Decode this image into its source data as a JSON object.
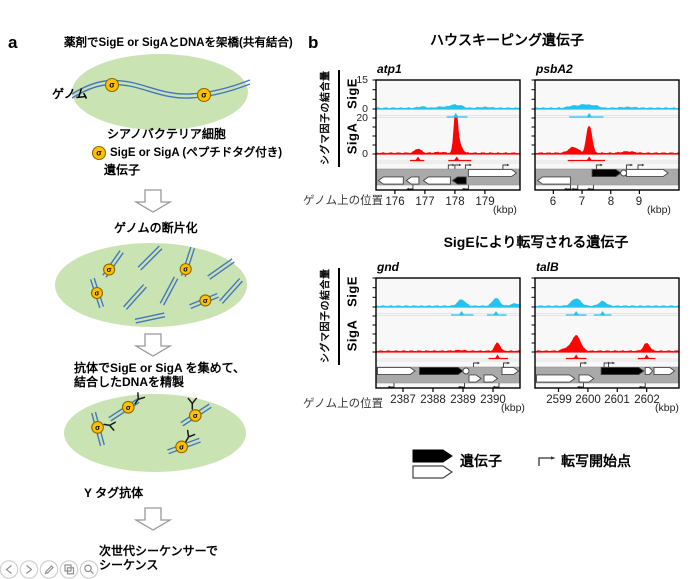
{
  "panel_a": {
    "label": "a",
    "sigma_symbol": "σ",
    "step1_title": "薬剤でSigE or SigAとDNAを架橋(共有結合)",
    "genome_label": "ゲノム",
    "cell_label": "シアノバクテリア細胞",
    "sigma_legend_line1": "SigE or SigA (ペプチドタグ付き)",
    "sigma_legend_line2": "遺伝子",
    "step2_title": "ゲノムの断片化",
    "step3_title_line1": "抗体でSigE or SigA を集めて、",
    "step3_title_line2": "結合したDNAを精製",
    "antibody_label": "Y タグ抗体",
    "step4_title_line1": "次世代シーケンサーで",
    "step4_title_line2": "シーケンス"
  },
  "panel_b": {
    "label": "b",
    "section1_title": "ハウスキーピング遺伝子",
    "section2_title": "SigEにより転写される遺伝子",
    "y_axis_label": "シグマ因子の結合量",
    "sigE_label": "SigE",
    "sigA_label": "SigA",
    "x_axis_label": "ゲノム上の位置",
    "kbp_label": "(kbp)",
    "legend": {
      "gene_label": "遺伝子",
      "tss_label": "転写開始点"
    }
  },
  "viewer_toolbar": {
    "buttons": [
      "previous-icon",
      "next-icon",
      "edit-pencil-icon",
      "copy-icon",
      "zoom-icon"
    ]
  },
  "colors": {
    "sigE": "#23c3f1",
    "sigA": "#fb0404",
    "cell": "#c9e3b2",
    "dna": "#4677be",
    "sigma_fill": "#ffc000",
    "gene_bar": "#a9a9a9"
  },
  "chart_data": {
    "type": "area",
    "description": "ChIP-seq genome-browser tracks: SigE (cyan) and SigA (red) binding signal over four genomic loci, with gene models (gray bar: white/black arrows) and transcription start sites.",
    "y_units": {
      "sigE_max": 15,
      "sigA_max": 20
    },
    "plots": [
      {
        "gene": "atp1",
        "x_domain": [
          175.37,
          180.17
        ],
        "x_ticks": [
          "176",
          "177",
          "178",
          "179"
        ],
        "show_y_numbers": true,
        "sigE": {
          "ymax": 15,
          "axis_labels": [
            "15",
            "0"
          ],
          "peaks": [
            {
              "x": 176.9,
              "h": 0.7,
              "w": 0.12
            },
            {
              "x": 177.55,
              "h": 0.6,
              "w": 0.15
            },
            {
              "x": 177.95,
              "h": 1.6,
              "w": 0.13
            },
            {
              "x": 178.2,
              "h": 1.0,
              "w": 0.1
            },
            {
              "x": 179.0,
              "h": 0.4,
              "w": 0.2
            }
          ],
          "markers": [
            {
              "x0": 177.72,
              "x1": 178.42,
              "sx": 178.03
            }
          ]
        },
        "sigA": {
          "ymax": 20,
          "axis_labels": [
            "20",
            "0"
          ],
          "peaks": [
            {
              "x": 176.77,
              "h": 2.3,
              "w": 0.1
            },
            {
              "x": 178.03,
              "h": 20,
              "w": 0.055
            },
            {
              "x": 178.13,
              "h": 5,
              "w": 0.1
            },
            {
              "x": 177.5,
              "h": 0.4,
              "w": 0.15
            }
          ],
          "markers": [
            {
              "x0": 176.5,
              "x1": 176.98,
              "sx": 176.77
            },
            {
              "x0": 177.78,
              "x1": 178.55,
              "sx": 178.06
            }
          ]
        },
        "genes": [
          {
            "row": 1,
            "start": 175.45,
            "end": 176.28,
            "dir": "left",
            "fill": "white"
          },
          {
            "row": 1,
            "start": 176.38,
            "end": 176.8,
            "dir": "left",
            "fill": "white"
          },
          {
            "row": 1,
            "start": 176.95,
            "end": 177.85,
            "dir": "left",
            "fill": "white"
          },
          {
            "row": 1,
            "start": 177.92,
            "end": 178.38,
            "dir": "left",
            "fill": "black"
          },
          {
            "row": 0,
            "start": 178.45,
            "end": 180.05,
            "dir": "right",
            "fill": "white"
          }
        ],
        "tss": [
          {
            "x": 177.78,
            "dir": "right",
            "pos": "above"
          },
          {
            "x": 178.0,
            "dir": "right",
            "pos": "above"
          },
          {
            "x": 178.35,
            "dir": "right",
            "pos": "above"
          },
          {
            "x": 179.6,
            "dir": "right",
            "pos": "above"
          },
          {
            "x": 178.45,
            "dir": "left",
            "pos": "below"
          },
          {
            "x": 176.6,
            "dir": "left",
            "pos": "below"
          }
        ]
      },
      {
        "gene": "psbA2",
        "x_domain": [
          5.36,
          10.38
        ],
        "x_ticks": [
          "6",
          "7",
          "8",
          "9"
        ],
        "show_y_numbers": false,
        "sigE": {
          "ymax": 15,
          "peaks": [
            {
              "x": 6.7,
              "h": 1.1,
              "w": 0.18
            },
            {
              "x": 7.1,
              "h": 1.7,
              "w": 0.16
            },
            {
              "x": 7.45,
              "h": 1.2,
              "w": 0.14
            },
            {
              "x": 8.6,
              "h": 0.4,
              "w": 0.25
            }
          ],
          "markers": [
            {
              "x0": 6.55,
              "x1": 7.75,
              "sx": 7.25
            }
          ]
        },
        "sigA": {
          "ymax": 20,
          "peaks": [
            {
              "x": 6.7,
              "h": 3.2,
              "w": 0.16
            },
            {
              "x": 7.25,
              "h": 15,
              "w": 0.085
            },
            {
              "x": 8.6,
              "h": 0.8,
              "w": 0.2
            }
          ],
          "markers": [
            {
              "x0": 6.5,
              "x1": 7.8,
              "sx": 7.25
            }
          ]
        },
        "genes": [
          {
            "row": 1,
            "start": 5.45,
            "end": 6.6,
            "dir": "left",
            "fill": "white"
          },
          {
            "row": 0,
            "start": 7.35,
            "end": 8.35,
            "dir": "right",
            "fill": "black"
          },
          {
            "shape": "circle",
            "x": 8.45,
            "row": 0
          },
          {
            "row": 0,
            "start": 8.55,
            "end": 10.0,
            "dir": "right",
            "fill": "white"
          }
        ],
        "tss": [
          {
            "x": 7.5,
            "dir": "right",
            "pos": "above"
          },
          {
            "x": 8.55,
            "dir": "right",
            "pos": "above"
          },
          {
            "x": 8.95,
            "dir": "right",
            "pos": "above"
          },
          {
            "x": 6.6,
            "dir": "left",
            "pos": "below"
          },
          {
            "x": 6.85,
            "dir": "left",
            "pos": "below"
          },
          {
            "x": 7.4,
            "dir": "left",
            "pos": "below"
          }
        ]
      },
      {
        "gene": "gnd",
        "x_domain": [
          2386.1,
          2390.9
        ],
        "x_ticks": [
          "2387",
          "2388",
          "2389",
          "2390"
        ],
        "show_y_numbers": false,
        "sigE": {
          "ymax": 15,
          "peaks": [
            {
              "x": 2388.95,
              "h": 3.3,
              "w": 0.12
            },
            {
              "x": 2390.1,
              "h": 4.0,
              "w": 0.11
            },
            {
              "x": 2390.75,
              "h": 1.2,
              "w": 0.15
            }
          ],
          "markers": [
            {
              "x0": 2388.6,
              "x1": 2389.35,
              "sx": 2388.95
            },
            {
              "x0": 2389.8,
              "x1": 2390.45,
              "sx": 2390.1
            }
          ]
        },
        "sigA": {
          "ymax": 20,
          "peaks": [
            {
              "x": 2390.15,
              "h": 4.5,
              "w": 0.08
            },
            {
              "x": 2388.9,
              "h": 0.4,
              "w": 0.15
            }
          ],
          "markers": [
            {
              "x0": 2389.85,
              "x1": 2390.5,
              "sx": 2390.15
            }
          ]
        },
        "genes": [
          {
            "row": 0,
            "start": 2386.15,
            "end": 2387.4,
            "dir": "right",
            "fill": "white"
          },
          {
            "row": 0,
            "start": 2387.55,
            "end": 2389.0,
            "dir": "right",
            "fill": "black"
          },
          {
            "shape": "circle",
            "x": 2389.1,
            "row": 0
          },
          {
            "row": 1,
            "start": 2389.2,
            "end": 2389.6,
            "dir": "right",
            "fill": "white"
          },
          {
            "row": 1,
            "start": 2389.7,
            "end": 2390.15,
            "dir": "right",
            "fill": "white"
          },
          {
            "row": 0,
            "start": 2390.3,
            "end": 2390.85,
            "dir": "right",
            "fill": "white"
          }
        ],
        "tss": [
          {
            "x": 2389.35,
            "dir": "right",
            "pos": "above"
          },
          {
            "x": 2390.35,
            "dir": "right",
            "pos": "above"
          },
          {
            "x": 2386.7,
            "dir": "left",
            "pos": "below"
          },
          {
            "x": 2389.05,
            "dir": "left",
            "pos": "below"
          },
          {
            "x": 2390.2,
            "dir": "left",
            "pos": "below"
          }
        ]
      },
      {
        "gene": "talB",
        "x_domain": [
          2598.2,
          2603.1
        ],
        "x_ticks": [
          "2599",
          "2600",
          "2601",
          "2602"
        ],
        "show_y_numbers": false,
        "sigE": {
          "ymax": 15,
          "peaks": [
            {
              "x": 2599.6,
              "h": 3.8,
              "w": 0.15
            },
            {
              "x": 2600.5,
              "h": 2.4,
              "w": 0.12
            }
          ],
          "markers": [
            {
              "x0": 2599.25,
              "x1": 2599.95,
              "sx": 2599.6
            },
            {
              "x0": 2600.2,
              "x1": 2600.8,
              "sx": 2600.5
            }
          ]
        },
        "sigA": {
          "ymax": 20,
          "peaks": [
            {
              "x": 2599.6,
              "h": 8.5,
              "w": 0.14
            },
            {
              "x": 2599.25,
              "h": 1.5,
              "w": 0.12
            },
            {
              "x": 2602.0,
              "h": 4.2,
              "w": 0.1
            }
          ],
          "markers": [
            {
              "x0": 2599.25,
              "x1": 2599.95,
              "sx": 2599.6
            },
            {
              "x0": 2601.7,
              "x1": 2602.3,
              "sx": 2602.0
            }
          ]
        },
        "genes": [
          {
            "row": 1,
            "start": 2598.25,
            "end": 2599.55,
            "dir": "right",
            "fill": "white"
          },
          {
            "row": 1,
            "start": 2599.7,
            "end": 2600.2,
            "dir": "right",
            "fill": "white"
          },
          {
            "row": 0,
            "start": 2600.45,
            "end": 2601.9,
            "dir": "right",
            "fill": "black"
          },
          {
            "row": 0,
            "start": 2601.95,
            "end": 2602.2,
            "dir": "right",
            "fill": "white"
          },
          {
            "row": 0,
            "start": 2602.25,
            "end": 2602.95,
            "dir": "right",
            "fill": "white"
          }
        ],
        "tss": [
          {
            "x": 2599.75,
            "dir": "right",
            "pos": "above"
          },
          {
            "x": 2600.55,
            "dir": "right",
            "pos": "above"
          },
          {
            "x": 2600.7,
            "dir": "right",
            "pos": "above"
          },
          {
            "x": 2599.85,
            "dir": "left",
            "pos": "below"
          },
          {
            "x": 2601.95,
            "dir": "left",
            "pos": "below"
          }
        ]
      }
    ]
  }
}
